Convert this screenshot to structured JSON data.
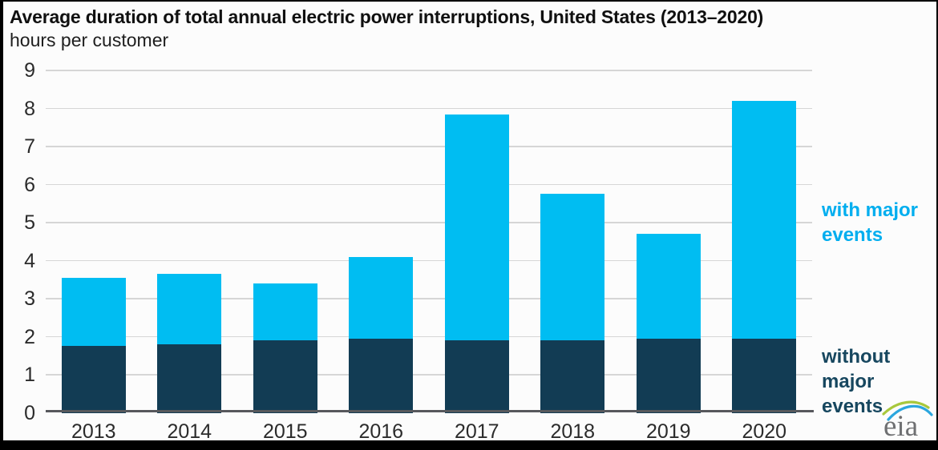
{
  "header": {
    "title": "Average duration of total annual electric power interruptions, United States (2013–2020)",
    "subtitle": "hours per customer"
  },
  "chart_data": {
    "type": "bar",
    "stacked": true,
    "title": "Average duration of total annual electric power interruptions, United States (2013–2020)",
    "subtitle": "hours per customer",
    "ylabel": "hours per customer",
    "xlabel": "",
    "categories": [
      "2013",
      "2014",
      "2015",
      "2016",
      "2017",
      "2018",
      "2019",
      "2020"
    ],
    "series": [
      {
        "name": "without major events",
        "color": "#123c54",
        "values": [
          1.75,
          1.8,
          1.9,
          1.95,
          1.9,
          1.9,
          1.95,
          1.95
        ]
      },
      {
        "name": "with major events",
        "color": "#00bdf2",
        "values": [
          1.8,
          1.85,
          1.5,
          2.15,
          5.95,
          3.85,
          2.75,
          6.25
        ]
      }
    ],
    "totals": [
      3.55,
      3.65,
      3.4,
      4.1,
      7.85,
      5.75,
      4.7,
      8.2
    ],
    "ylim": [
      0,
      9
    ],
    "ytick_step": 1,
    "grid": "horizontal",
    "legend_position": "right"
  },
  "legend": {
    "with_major": {
      "lines": [
        "with major",
        "events"
      ],
      "color": "#00aeef"
    },
    "without_major": {
      "lines": [
        "without",
        "major",
        "events"
      ],
      "color": "#17475f"
    }
  },
  "colors": {
    "background": "#fcfcfc",
    "frame": "#000000",
    "gridline": "#d6d6d6",
    "axis_line": "#57585c",
    "axis_text": "#2b2b2b",
    "logo_gray": "#6f7072",
    "logo_green": "#a8c83c",
    "logo_blue": "#2ba6de"
  },
  "logo": {
    "text": "eia"
  }
}
